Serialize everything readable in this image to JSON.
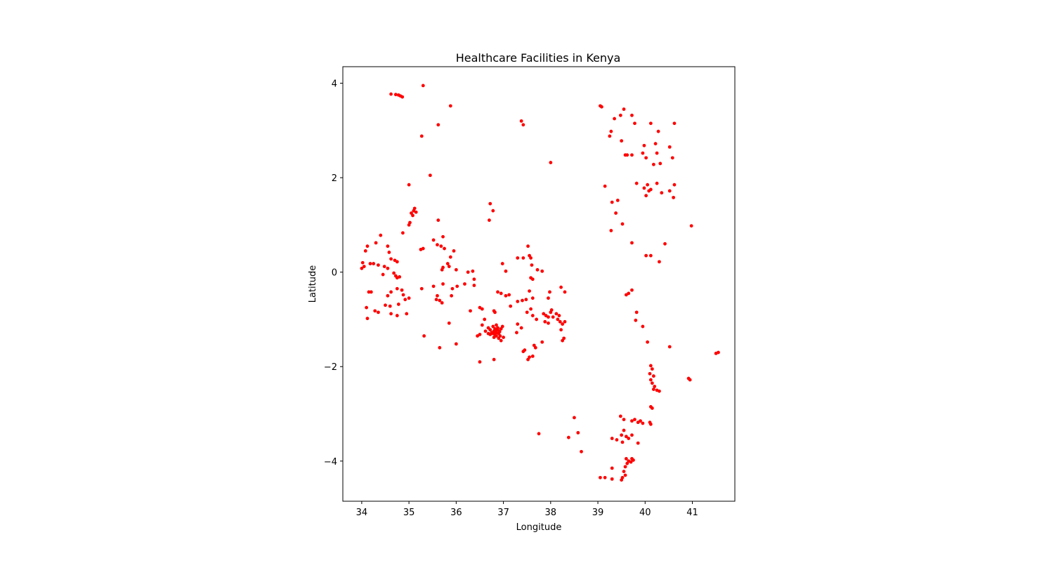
{
  "chart_data": {
    "type": "scatter",
    "title": "Healthcare Facilities in Kenya",
    "xlabel": "Longitude",
    "ylabel": "Latitude",
    "xlim": [
      33.6,
      41.9
    ],
    "ylim": [
      -4.85,
      4.35
    ],
    "xticks": [
      34,
      35,
      36,
      37,
      38,
      39,
      40,
      41
    ],
    "yticks": [
      4,
      2,
      0,
      -2,
      -4
    ],
    "ytick_labels": [
      "4",
      "2",
      "0",
      "−2",
      "−4"
    ],
    "grid": false,
    "legend": "none",
    "marker_color": "#ff0000",
    "series": [
      {
        "points": [
          [
            34.62,
            3.77
          ],
          [
            34.72,
            3.76
          ],
          [
            34.78,
            3.75
          ],
          [
            34.82,
            3.73
          ],
          [
            34.86,
            3.71
          ],
          [
            35.3,
            3.95
          ],
          [
            35.88,
            3.52
          ],
          [
            35.62,
            3.12
          ],
          [
            35.27,
            2.88
          ],
          [
            35.45,
            2.05
          ],
          [
            35.0,
            1.85
          ],
          [
            35.05,
            1.25
          ],
          [
            35.1,
            1.3
          ],
          [
            35.12,
            1.35
          ],
          [
            35.08,
            1.2
          ],
          [
            35.15,
            1.27
          ],
          [
            35.02,
            1.05
          ],
          [
            35.0,
            1.0
          ],
          [
            34.87,
            0.83
          ],
          [
            35.25,
            0.48
          ],
          [
            35.3,
            0.5
          ],
          [
            35.62,
            1.1
          ],
          [
            35.72,
            0.75
          ],
          [
            35.68,
            0.55
          ],
          [
            35.75,
            0.5
          ],
          [
            35.52,
            0.68
          ],
          [
            35.6,
            0.58
          ],
          [
            35.88,
            0.32
          ],
          [
            35.95,
            0.45
          ],
          [
            35.82,
            0.18
          ],
          [
            35.7,
            0.05
          ],
          [
            35.72,
            0.1
          ],
          [
            35.85,
            0.12
          ],
          [
            36.0,
            0.05
          ],
          [
            35.52,
            -0.3
          ],
          [
            35.6,
            -0.5
          ],
          [
            35.65,
            -0.6
          ],
          [
            35.7,
            -0.65
          ],
          [
            35.58,
            -0.58
          ],
          [
            35.72,
            -0.25
          ],
          [
            35.92,
            -0.35
          ],
          [
            36.02,
            -0.3
          ],
          [
            35.9,
            -0.5
          ],
          [
            36.18,
            -0.25
          ],
          [
            36.25,
            0.0
          ],
          [
            36.35,
            0.02
          ],
          [
            36.38,
            -0.15
          ],
          [
            36.38,
            -0.28
          ],
          [
            35.85,
            -1.08
          ],
          [
            35.65,
            -1.6
          ],
          [
            36.0,
            -1.52
          ],
          [
            35.32,
            -1.35
          ],
          [
            35.27,
            -0.35
          ],
          [
            34.0,
            0.08
          ],
          [
            34.05,
            0.12
          ],
          [
            34.02,
            0.2
          ],
          [
            34.08,
            0.45
          ],
          [
            34.12,
            0.55
          ],
          [
            34.3,
            0.62
          ],
          [
            34.4,
            0.78
          ],
          [
            34.55,
            0.55
          ],
          [
            34.18,
            0.18
          ],
          [
            34.25,
            0.18
          ],
          [
            34.35,
            0.15
          ],
          [
            34.48,
            0.12
          ],
          [
            34.55,
            0.08
          ],
          [
            34.62,
            0.28
          ],
          [
            34.7,
            0.25
          ],
          [
            34.75,
            0.22
          ],
          [
            34.72,
            -0.08
          ],
          [
            34.75,
            -0.12
          ],
          [
            34.8,
            -0.1
          ],
          [
            34.45,
            -0.05
          ],
          [
            34.58,
            0.42
          ],
          [
            34.68,
            -0.02
          ],
          [
            34.15,
            -0.42
          ],
          [
            34.2,
            -0.42
          ],
          [
            34.55,
            -0.5
          ],
          [
            34.62,
            -0.42
          ],
          [
            34.75,
            -0.35
          ],
          [
            34.85,
            -0.38
          ],
          [
            34.92,
            -0.58
          ],
          [
            35.0,
            -0.55
          ],
          [
            34.88,
            -0.48
          ],
          [
            34.5,
            -0.7
          ],
          [
            34.6,
            -0.72
          ],
          [
            34.35,
            -0.85
          ],
          [
            34.28,
            -0.82
          ],
          [
            34.12,
            -0.98
          ],
          [
            34.1,
            -0.75
          ],
          [
            34.62,
            -0.88
          ],
          [
            34.75,
            -0.92
          ],
          [
            34.78,
            -0.68
          ],
          [
            34.95,
            -0.88
          ],
          [
            36.72,
            1.45
          ],
          [
            36.78,
            1.3
          ],
          [
            36.7,
            1.1
          ],
          [
            36.98,
            0.18
          ],
          [
            37.05,
            0.02
          ],
          [
            37.3,
            0.3
          ],
          [
            37.42,
            0.3
          ],
          [
            37.52,
            0.55
          ],
          [
            37.55,
            0.35
          ],
          [
            37.58,
            0.3
          ],
          [
            37.58,
            -0.12
          ],
          [
            37.62,
            -0.15
          ],
          [
            37.6,
            0.15
          ],
          [
            37.55,
            -0.4
          ],
          [
            37.72,
            0.05
          ],
          [
            37.82,
            0.02
          ],
          [
            37.98,
            -0.42
          ],
          [
            37.95,
            -0.55
          ],
          [
            37.62,
            -0.55
          ],
          [
            37.48,
            -0.58
          ],
          [
            37.4,
            -0.6
          ],
          [
            37.3,
            -0.62
          ],
          [
            36.88,
            -0.42
          ],
          [
            36.95,
            -0.45
          ],
          [
            37.05,
            -0.5
          ],
          [
            37.12,
            -0.48
          ],
          [
            37.15,
            -0.72
          ],
          [
            36.8,
            -0.82
          ],
          [
            36.82,
            -0.85
          ],
          [
            36.5,
            -0.75
          ],
          [
            36.55,
            -0.78
          ],
          [
            36.3,
            -0.82
          ],
          [
            36.45,
            -1.35
          ],
          [
            36.5,
            -1.32
          ],
          [
            36.55,
            -1.12
          ],
          [
            36.6,
            -1.0
          ],
          [
            36.62,
            -1.25
          ],
          [
            36.68,
            -1.18
          ],
          [
            36.72,
            -1.22
          ],
          [
            36.75,
            -1.28
          ],
          [
            36.78,
            -1.3
          ],
          [
            36.8,
            -1.25
          ],
          [
            36.82,
            -1.32
          ],
          [
            36.85,
            -1.28
          ],
          [
            36.88,
            -1.22
          ],
          [
            36.9,
            -1.3
          ],
          [
            36.92,
            -1.26
          ],
          [
            36.95,
            -1.2
          ],
          [
            36.98,
            -1.15
          ],
          [
            36.85,
            -1.35
          ],
          [
            36.8,
            -1.38
          ],
          [
            36.95,
            -1.45
          ],
          [
            37.0,
            -1.38
          ],
          [
            36.78,
            -1.15
          ],
          [
            36.85,
            -1.12
          ],
          [
            36.88,
            -1.18
          ],
          [
            36.72,
            -1.32
          ],
          [
            36.9,
            -1.4
          ],
          [
            36.82,
            -1.2
          ],
          [
            36.93,
            -1.35
          ],
          [
            36.68,
            -1.3
          ],
          [
            36.85,
            -1.25
          ],
          [
            36.5,
            -1.9
          ],
          [
            36.8,
            -1.85
          ],
          [
            37.3,
            -1.1
          ],
          [
            37.38,
            -1.18
          ],
          [
            37.28,
            -1.28
          ],
          [
            37.5,
            -0.85
          ],
          [
            37.58,
            -0.78
          ],
          [
            37.62,
            -0.92
          ],
          [
            37.7,
            -1.0
          ],
          [
            37.42,
            -1.68
          ],
          [
            37.45,
            -1.65
          ],
          [
            37.52,
            -1.85
          ],
          [
            37.55,
            -1.8
          ],
          [
            37.62,
            -1.78
          ],
          [
            37.65,
            -1.55
          ],
          [
            37.68,
            -1.6
          ],
          [
            37.82,
            -1.48
          ],
          [
            37.75,
            -3.42
          ],
          [
            37.85,
            -0.88
          ],
          [
            37.9,
            -0.92
          ],
          [
            37.95,
            -0.95
          ],
          [
            38.0,
            -0.85
          ],
          [
            38.02,
            -0.8
          ],
          [
            38.05,
            -0.95
          ],
          [
            37.88,
            -1.05
          ],
          [
            37.95,
            -1.08
          ],
          [
            38.12,
            -0.88
          ],
          [
            38.15,
            -1.0
          ],
          [
            38.2,
            -1.05
          ],
          [
            38.25,
            -1.1
          ],
          [
            38.22,
            -0.32
          ],
          [
            38.3,
            -0.42
          ],
          [
            38.18,
            -0.92
          ],
          [
            38.28,
            -1.4
          ],
          [
            38.22,
            -1.22
          ],
          [
            38.3,
            -1.05
          ],
          [
            38.25,
            -1.45
          ],
          [
            37.38,
            3.2
          ],
          [
            37.42,
            3.12
          ],
          [
            38.0,
            2.32
          ],
          [
            39.05,
            3.52
          ],
          [
            39.08,
            3.5
          ],
          [
            39.35,
            3.25
          ],
          [
            39.48,
            3.32
          ],
          [
            39.55,
            3.45
          ],
          [
            39.72,
            3.32
          ],
          [
            39.78,
            3.15
          ],
          [
            40.12,
            3.15
          ],
          [
            40.28,
            2.98
          ],
          [
            40.62,
            3.15
          ],
          [
            39.28,
            2.98
          ],
          [
            39.25,
            2.88
          ],
          [
            39.5,
            2.78
          ],
          [
            39.58,
            2.48
          ],
          [
            39.62,
            2.48
          ],
          [
            39.72,
            2.48
          ],
          [
            39.98,
            2.68
          ],
          [
            39.95,
            2.52
          ],
          [
            40.02,
            2.42
          ],
          [
            40.18,
            2.28
          ],
          [
            40.22,
            2.72
          ],
          [
            40.25,
            2.52
          ],
          [
            40.32,
            2.3
          ],
          [
            40.52,
            2.65
          ],
          [
            40.58,
            2.42
          ],
          [
            39.15,
            1.82
          ],
          [
            39.3,
            1.48
          ],
          [
            39.42,
            1.52
          ],
          [
            39.38,
            1.25
          ],
          [
            39.52,
            1.02
          ],
          [
            39.28,
            0.88
          ],
          [
            39.82,
            1.88
          ],
          [
            39.98,
            1.78
          ],
          [
            40.05,
            1.85
          ],
          [
            40.08,
            1.72
          ],
          [
            40.12,
            1.75
          ],
          [
            40.02,
            1.62
          ],
          [
            40.25,
            1.88
          ],
          [
            40.35,
            1.68
          ],
          [
            40.52,
            1.72
          ],
          [
            40.6,
            1.58
          ],
          [
            40.62,
            1.85
          ],
          [
            39.72,
            0.62
          ],
          [
            40.42,
            0.6
          ],
          [
            40.02,
            0.35
          ],
          [
            40.12,
            0.35
          ],
          [
            40.3,
            0.22
          ],
          [
            40.98,
            0.98
          ],
          [
            39.65,
            -0.45
          ],
          [
            39.6,
            -0.48
          ],
          [
            39.72,
            -0.38
          ],
          [
            39.82,
            -0.85
          ],
          [
            39.8,
            -1.02
          ],
          [
            39.95,
            -1.15
          ],
          [
            40.05,
            -1.48
          ],
          [
            40.52,
            -1.58
          ],
          [
            41.5,
            -1.72
          ],
          [
            41.55,
            -1.7
          ],
          [
            40.92,
            -2.25
          ],
          [
            40.95,
            -2.28
          ],
          [
            40.12,
            -1.98
          ],
          [
            40.15,
            -2.05
          ],
          [
            40.1,
            -2.15
          ],
          [
            40.18,
            -2.2
          ],
          [
            40.12,
            -2.28
          ],
          [
            40.15,
            -2.35
          ],
          [
            40.2,
            -2.42
          ],
          [
            40.18,
            -2.48
          ],
          [
            40.25,
            -2.5
          ],
          [
            40.3,
            -2.52
          ],
          [
            40.12,
            -2.85
          ],
          [
            40.15,
            -2.88
          ],
          [
            38.5,
            -3.08
          ],
          [
            38.58,
            -3.4
          ],
          [
            38.38,
            -3.5
          ],
          [
            38.65,
            -3.8
          ],
          [
            39.48,
            -3.05
          ],
          [
            39.55,
            -3.12
          ],
          [
            39.72,
            -3.15
          ],
          [
            39.78,
            -3.12
          ],
          [
            39.85,
            -3.18
          ],
          [
            39.9,
            -3.15
          ],
          [
            39.95,
            -3.2
          ],
          [
            40.1,
            -3.18
          ],
          [
            40.12,
            -3.22
          ],
          [
            39.55,
            -3.35
          ],
          [
            39.5,
            -3.45
          ],
          [
            39.6,
            -3.48
          ],
          [
            39.72,
            -3.45
          ],
          [
            39.85,
            -3.62
          ],
          [
            39.65,
            -3.52
          ],
          [
            39.4,
            -3.55
          ],
          [
            39.3,
            -3.52
          ],
          [
            39.52,
            -3.6
          ],
          [
            39.6,
            -3.95
          ],
          [
            39.65,
            -4.0
          ],
          [
            39.7,
            -4.02
          ],
          [
            39.72,
            -3.95
          ],
          [
            39.75,
            -3.98
          ],
          [
            39.62,
            -4.05
          ],
          [
            39.58,
            -4.12
          ],
          [
            39.55,
            -4.22
          ],
          [
            39.58,
            -4.3
          ],
          [
            39.52,
            -4.35
          ],
          [
            39.5,
            -4.4
          ],
          [
            39.3,
            -4.15
          ],
          [
            39.05,
            -4.35
          ],
          [
            39.15,
            -4.35
          ],
          [
            39.3,
            -4.38
          ]
        ]
      }
    ]
  }
}
